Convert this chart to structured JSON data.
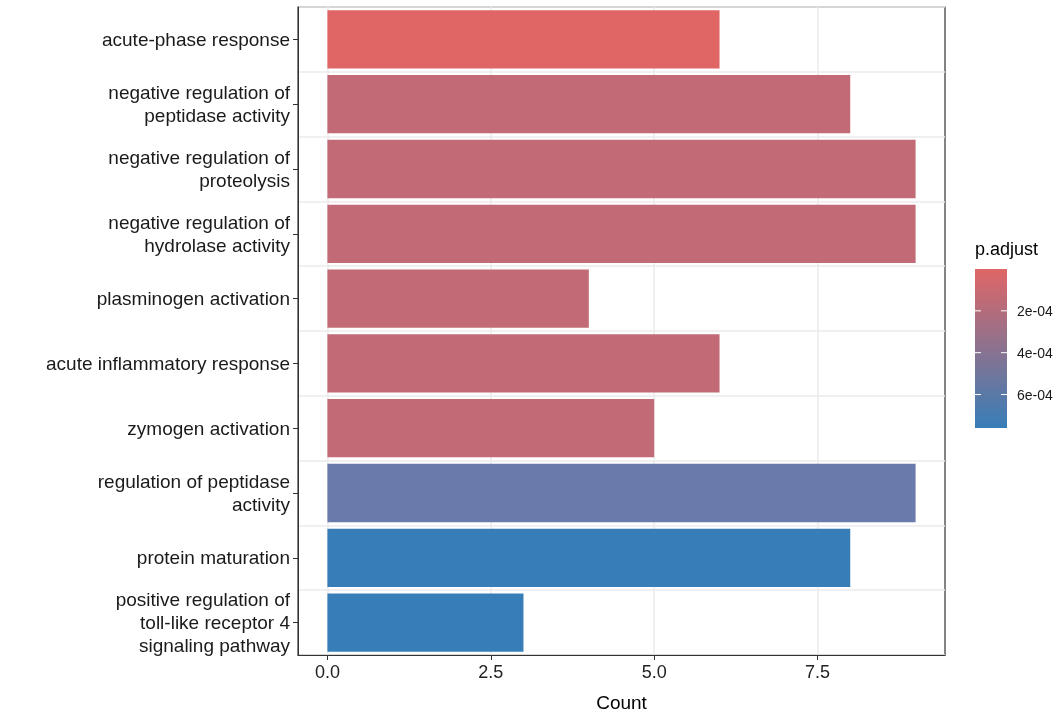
{
  "chart_data": {
    "type": "bar",
    "orientation": "horizontal",
    "xlabel": "Count",
    "clabel": "p.adjust",
    "categories": [
      "acute-phase response",
      "negative regulation of\npeptidase activity",
      "negative regulation of\nproteolysis",
      "negative regulation of\nhydrolase activity",
      "plasminogen activation",
      "acute inflammatory response",
      "zymogen activation",
      "regulation of peptidase\nactivity",
      "protein maturation",
      "positive regulation of\ntoll-like receptor 4\nsignaling pathway"
    ],
    "values": [
      6,
      8,
      9,
      9,
      4,
      6,
      5,
      9,
      8,
      3
    ],
    "clim": [
      0,
      0.00076
    ],
    "cticks": [
      {
        "value": 0.0002,
        "label": "2e-04"
      },
      {
        "value": 0.0004,
        "label": "4e-04"
      },
      {
        "value": 0.0006,
        "label": "6e-04"
      }
    ],
    "colors": [
      "#e06666",
      "#c26a75",
      "#c26a75",
      "#c26a75",
      "#c26a75",
      "#c26a75",
      "#c26a75",
      "#6a7aaa",
      "#377eb8",
      "#377eb8"
    ],
    "xlim": [
      -0.45,
      9.45
    ],
    "xticks": [
      {
        "value": 0,
        "label": "0.0"
      },
      {
        "value": 2.5,
        "label": "2.5"
      },
      {
        "value": 5,
        "label": "5.0"
      },
      {
        "value": 7.5,
        "label": "7.5"
      }
    ],
    "grid": true
  }
}
